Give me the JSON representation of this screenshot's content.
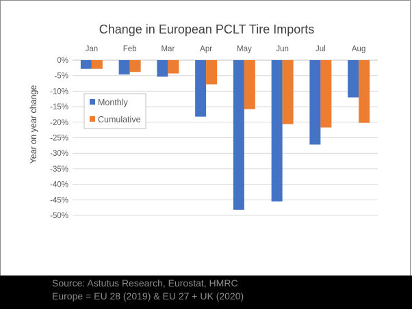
{
  "chart_data": {
    "type": "bar",
    "title": "Change in European PCLT Tire Imports",
    "xlabel": "",
    "ylabel": "Year on year change",
    "categories": [
      "Jan",
      "Feb",
      "Mar",
      "Apr",
      "May",
      "Jun",
      "Jul",
      "Aug"
    ],
    "series": [
      {
        "name": "Monthly",
        "color": "#4472c4",
        "values": [
          -2.8,
          -4.6,
          -5.3,
          -18.2,
          -48.2,
          -45.5,
          -27.2,
          -12.0
        ]
      },
      {
        "name": "Cumulative",
        "color": "#ed7d31",
        "values": [
          -2.8,
          -3.8,
          -4.3,
          -7.8,
          -15.8,
          -20.6,
          -21.7,
          -20.2
        ]
      }
    ],
    "ylim": [
      -50,
      0
    ],
    "yticks": [
      "0%",
      "-5%",
      "-10%",
      "-15%",
      "-20%",
      "-25%",
      "-30%",
      "-35%",
      "-40%",
      "-45%",
      "-50%"
    ],
    "grid": true,
    "legend": "left"
  },
  "footer": {
    "source": "Source: Astutus Research, Eurostat, HMRC",
    "note": "Europe = EU 28 (2019) & EU 27 + UK (2020)"
  }
}
